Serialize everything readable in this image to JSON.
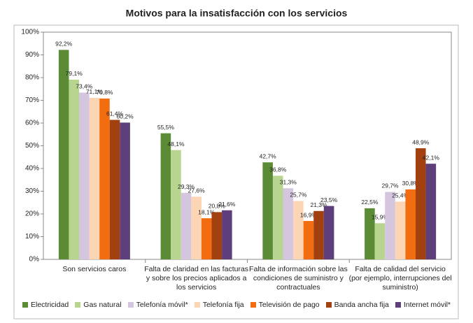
{
  "chart_data": {
    "type": "bar",
    "title": "Motivos para la insatisfacción con los servicios",
    "categories": [
      "Son servicios caros",
      "Falta de claridad en las facturas y sobre los precios aplicados a los servicios",
      "Falta de información sobre las condiciones de suministro y contractuales",
      "Falta de calidad del servicio (por ejemplo, interrupciones del suministro)"
    ],
    "series": [
      {
        "name": "Electricidad",
        "color": "#5b8c35",
        "values": [
          92.2,
          55.5,
          42.7,
          22.5
        ],
        "value_labels": [
          "92,2%",
          "55,5%",
          "42,7%",
          "22,5%"
        ]
      },
      {
        "name": "Gas natural",
        "color": "#b7d58f",
        "values": [
          79.1,
          48.1,
          36.8,
          15.9
        ],
        "value_labels": [
          "79,1%",
          "48,1%",
          "36,8%",
          "15,9%"
        ]
      },
      {
        "name": "Telefonía móvil*",
        "color": "#d5c6e0",
        "values": [
          73.4,
          29.3,
          31.3,
          29.7
        ],
        "value_labels": [
          "73,4%",
          "29,3%",
          "31,3%",
          "29,7%"
        ]
      },
      {
        "name": "Telefonía fija",
        "color": "#fcd5b5",
        "values": [
          71.1,
          27.6,
          25.7,
          25.4
        ],
        "value_labels": [
          "71,1%",
          "27,6%",
          "25,7%",
          "25,4%"
        ]
      },
      {
        "name": "Televisión de pago",
        "color": "#f26d10",
        "values": [
          70.8,
          18.1,
          16.9,
          30.8
        ],
        "value_labels": [
          "70,8%",
          "18,1%",
          "16,9%",
          "30,8%"
        ]
      },
      {
        "name": "Banda ancha fija",
        "color": "#a3400f",
        "values": [
          61.4,
          20.8,
          21.3,
          48.9
        ],
        "value_labels": [
          "61,4%",
          "20,8%",
          "21,3%",
          "48,9%"
        ]
      },
      {
        "name": "Internet móvil*",
        "color": "#5f3f7b",
        "values": [
          60.2,
          21.6,
          23.5,
          42.1
        ],
        "value_labels": [
          "60,2%",
          "21,6%",
          "23,5%",
          "42,1%"
        ]
      }
    ],
    "ylim": [
      0,
      100
    ],
    "yticks": [
      {
        "value": 0,
        "label": "0%"
      },
      {
        "value": 10,
        "label": "10%"
      },
      {
        "value": 20,
        "label": "20%"
      },
      {
        "value": 30,
        "label": "30%"
      },
      {
        "value": 40,
        "label": "40%"
      },
      {
        "value": 50,
        "label": "50%"
      },
      {
        "value": 60,
        "label": "60%"
      },
      {
        "value": 70,
        "label": "70%"
      },
      {
        "value": 80,
        "label": "80%"
      },
      {
        "value": 90,
        "label": "90%"
      },
      {
        "value": 100,
        "label": "100%"
      }
    ],
    "grid": false
  }
}
